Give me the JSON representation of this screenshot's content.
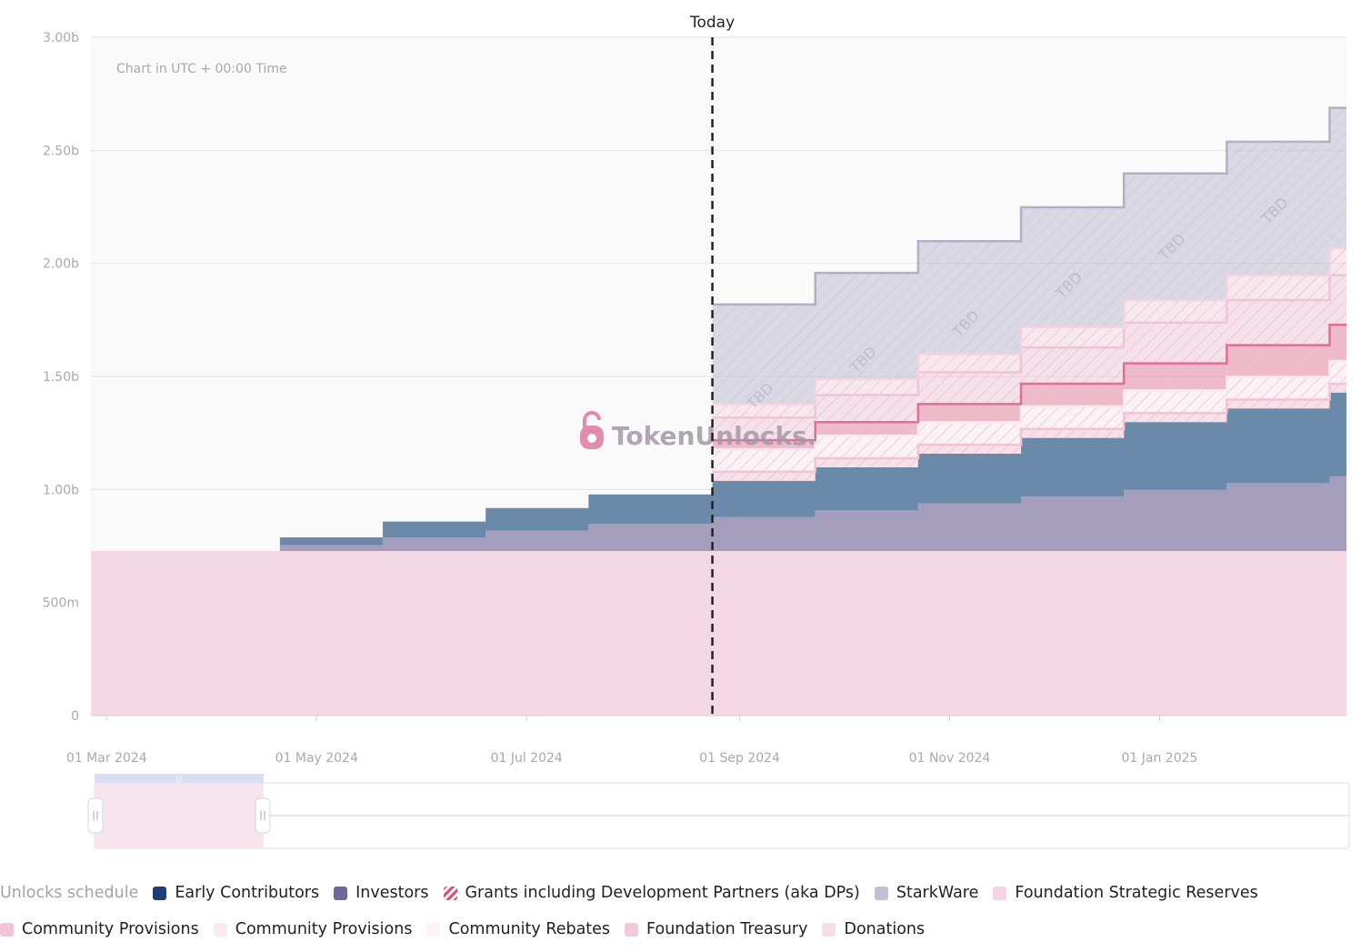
{
  "chart_data": {
    "type": "area",
    "subtype": "stacked-step",
    "note": "Chart in UTC + 00:00 Time",
    "today_label": "Today",
    "today_x": 5.77,
    "yticks": [
      {
        "value": 0,
        "label": "0"
      },
      {
        "value": 0.5,
        "label": "500m"
      },
      {
        "value": 1.0,
        "label": "1.00b"
      },
      {
        "value": 1.5,
        "label": "1.50b"
      },
      {
        "value": 2.0,
        "label": "2.00b"
      },
      {
        "value": 2.5,
        "label": "2.50b"
      },
      {
        "value": 3.0,
        "label": "3.00b"
      }
    ],
    "ylim": [
      0,
      3.0
    ],
    "xlim": [
      -0.15,
      11.81
    ],
    "xticks": [
      {
        "value": 0,
        "label": "01 Mar 2024"
      },
      {
        "value": 2,
        "label": "01 May 2024"
      },
      {
        "value": 4,
        "label": "01 Jul 2024"
      },
      {
        "value": 6.03,
        "label": "01 Sep 2024"
      },
      {
        "value": 8.03,
        "label": "01 Nov 2024"
      },
      {
        "value": 10.03,
        "label": "01 Jan 2025"
      }
    ],
    "x_unit": "months since 01 Mar 2024",
    "y_unit": "billion tokens",
    "steps": [
      -0.15,
      1.65,
      2.63,
      3.61,
      4.59,
      5.77,
      6.75,
      7.73,
      8.71,
      9.69,
      10.67,
      11.65,
      11.81
    ],
    "series": [
      {
        "name": "Foundation Strategic Reserves",
        "color": "#f5d8e6",
        "projected": false,
        "values": [
          0.728,
          0.728,
          0.728,
          0.728,
          0.728,
          0.728,
          0.728,
          0.728,
          0.728,
          0.728,
          0.728,
          0.728,
          0.728
        ]
      },
      {
        "name": "Investors",
        "color": "#a49ebc",
        "projected": false,
        "values": [
          0,
          0.025,
          0.06,
          0.09,
          0.12,
          0.15,
          0.18,
          0.21,
          0.24,
          0.27,
          0.3,
          0.33,
          0.33
        ]
      },
      {
        "name": "Early Contributors",
        "color": "#6b8aaa",
        "projected": false,
        "values": [
          0,
          0.035,
          0.07,
          0.1,
          0.13,
          0.16,
          0.19,
          0.22,
          0.26,
          0.3,
          0.33,
          0.37,
          0.37
        ]
      },
      {
        "name": "Community Provisions",
        "color": "#f2c2d6",
        "projected": true,
        "values": [
          0,
          0,
          0,
          0,
          0,
          0.04,
          0.04,
          0.04,
          0.04,
          0.04,
          0.04,
          0.04,
          0.04
        ]
      },
      {
        "name": "Community Rebates",
        "color": "#fbe9f0",
        "projected": true,
        "values": [
          0,
          0,
          0,
          0,
          0,
          0.1,
          0.1,
          0.1,
          0.1,
          0.1,
          0.1,
          0.1,
          0.1
        ]
      },
      {
        "name": "Grants including Development Partners (aka DPs)",
        "color": "#e06f93",
        "projected": true,
        "values": [
          0,
          0,
          0,
          0,
          0,
          0.04,
          0.06,
          0.08,
          0.1,
          0.12,
          0.14,
          0.16,
          0.16
        ]
      },
      {
        "name": "Foundation Treasury",
        "color": "#f0c4d6",
        "projected": true,
        "values": [
          0,
          0,
          0,
          0,
          0,
          0.1,
          0.12,
          0.14,
          0.16,
          0.18,
          0.2,
          0.22,
          0.22
        ]
      },
      {
        "name": "Donations",
        "color": "#f3d3e0",
        "projected": true,
        "values": [
          0,
          0,
          0,
          0,
          0,
          0.06,
          0.07,
          0.08,
          0.09,
          0.1,
          0.11,
          0.12,
          0.12
        ]
      },
      {
        "name": "StarkWare",
        "color": "#b3b0c6",
        "projected": true,
        "values": [
          0,
          0,
          0,
          0,
          0,
          0.44,
          0.47,
          0.5,
          0.53,
          0.56,
          0.59,
          0.62,
          0.62
        ]
      }
    ],
    "tbd_label": "TBD",
    "watermark": "TokenUnlocks."
  },
  "legend": {
    "title": "Unlocks schedule",
    "row1": [
      {
        "label": "Early Contributors",
        "color": "#1e3f73",
        "hatched": false
      },
      {
        "label": "Investors",
        "color": "#70689c",
        "hatched": false
      },
      {
        "label": "Grants including Development Partners (aka DPs)",
        "color": "#e0506f",
        "hatched": true
      },
      {
        "label": "StarkWare",
        "color": "#c2bfd3",
        "hatched": false
      },
      {
        "label": "Foundation Strategic Reserves",
        "color": "#f7d3e3",
        "hatched": false
      }
    ],
    "row2": [
      {
        "label": "Community Provisions",
        "color": "#f2c2d7",
        "hatched": false
      },
      {
        "label": "Community Provisions",
        "color": "#faeaf0",
        "hatched": false
      },
      {
        "label": "Community Rebates",
        "color": "#fdf2f6",
        "hatched": false
      },
      {
        "label": "Foundation Treasury",
        "color": "#f3c9da",
        "hatched": false
      },
      {
        "label": "Donations",
        "color": "#f7dee8",
        "hatched": false
      }
    ]
  }
}
